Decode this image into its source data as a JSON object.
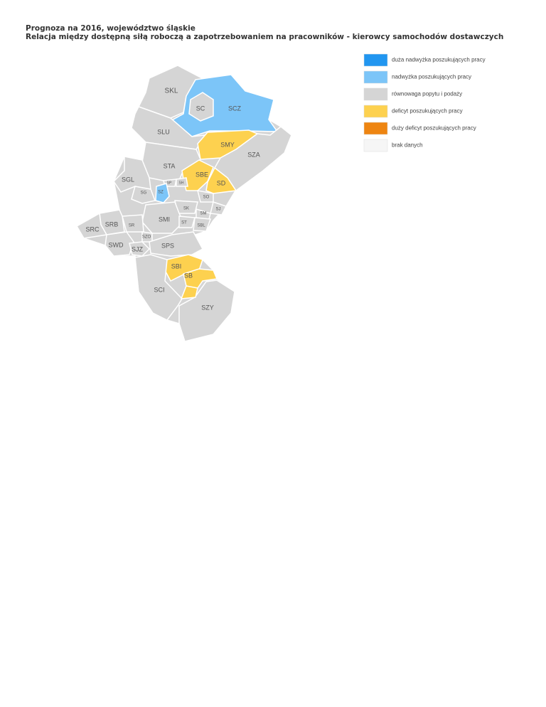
{
  "header": {
    "title": "Prognoza na 2016, województwo śląskie",
    "subtitle": "Relacja między dostępną siłą roboczą a zapotrzebowaniem na pracowników - kierowcy samochodów dostawczych"
  },
  "legend": [
    {
      "label": "duża nadwyżka poszukujących pracy",
      "color": "#2196f0"
    },
    {
      "label": "nadwyżka poszukujących pracy",
      "color": "#7cc5f8"
    },
    {
      "label": "równowaga popytu i podaży",
      "color": "#d5d5d5"
    },
    {
      "label": "deficyt poszukujących pracy",
      "color": "#fdd14f"
    },
    {
      "label": "duży deficyt poszukujących pracy",
      "color": "#ee8511"
    },
    {
      "label": "brak danych",
      "color": "#f6f6f6"
    }
  ],
  "regions": [
    {
      "code": "SKL",
      "fill": "#d5d5d5"
    },
    {
      "code": "SCZ",
      "fill": "#7cc5f8"
    },
    {
      "code": "SC",
      "fill": "#d5d5d5"
    },
    {
      "code": "SLU",
      "fill": "#d5d5d5"
    },
    {
      "code": "SMY",
      "fill": "#fdd14f"
    },
    {
      "code": "SZA",
      "fill": "#d5d5d5"
    },
    {
      "code": "STA",
      "fill": "#d5d5d5"
    },
    {
      "code": "SBE",
      "fill": "#fdd14f"
    },
    {
      "code": "SD",
      "fill": "#fdd14f"
    },
    {
      "code": "SGL",
      "fill": "#d5d5d5"
    },
    {
      "code": "SP",
      "fill": "#d5d5d5"
    },
    {
      "code": "SH",
      "fill": "#d5d5d5"
    },
    {
      "code": "SZ",
      "fill": "#7cc5f8"
    },
    {
      "code": "SG",
      "fill": "#d5d5d5"
    },
    {
      "code": "SO",
      "fill": "#d5d5d5"
    },
    {
      "code": "SK",
      "fill": "#d5d5d5"
    },
    {
      "code": "SJ",
      "fill": "#d5d5d5"
    },
    {
      "code": "SM",
      "fill": "#d5d5d5"
    },
    {
      "code": "SMI",
      "fill": "#d5d5d5"
    },
    {
      "code": "ST",
      "fill": "#d5d5d5"
    },
    {
      "code": "SBL",
      "fill": "#d5d5d5"
    },
    {
      "code": "SR",
      "fill": "#d5d5d5"
    },
    {
      "code": "SRB",
      "fill": "#d5d5d5"
    },
    {
      "code": "SRC",
      "fill": "#d5d5d5"
    },
    {
      "code": "SZO",
      "fill": "#d5d5d5"
    },
    {
      "code": "SWD",
      "fill": "#d5d5d5"
    },
    {
      "code": "SJZ",
      "fill": "#d5d5d5"
    },
    {
      "code": "SPS",
      "fill": "#d5d5d5"
    },
    {
      "code": "SBI",
      "fill": "#fdd14f"
    },
    {
      "code": "SB",
      "fill": "#fdd14f"
    },
    {
      "code": "SCI",
      "fill": "#d5d5d5"
    },
    {
      "code": "SZY",
      "fill": "#d5d5d5"
    }
  ]
}
